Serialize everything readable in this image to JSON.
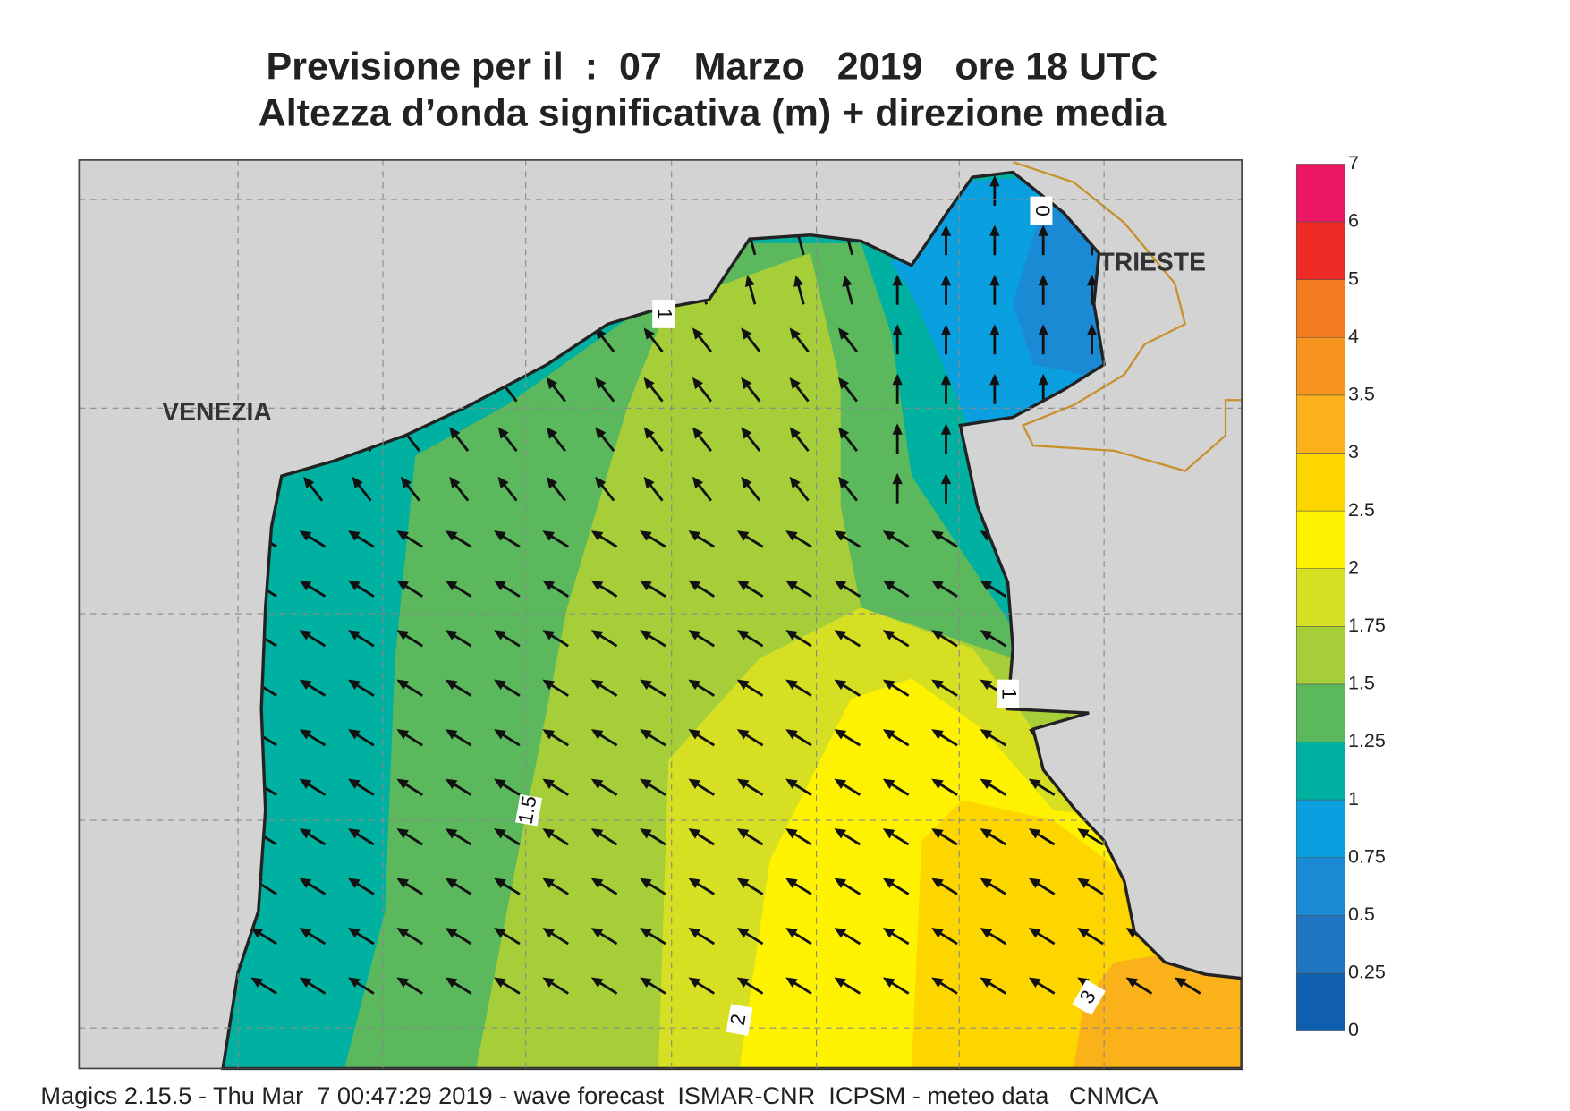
{
  "header": {
    "title": "Previsione per il  :  07   Marzo   2019   ore 18 UTC",
    "subtitle": "Altezza d’onda significativa (m) + direzione media"
  },
  "map": {
    "cities": [
      "VENEZIA",
      "TRIESTE"
    ],
    "contour_labels": [
      "0",
      "1",
      "1.5",
      "2",
      "3",
      "1"
    ]
  },
  "colorbar": {
    "levels": [
      0,
      0.25,
      0.5,
      0.75,
      1,
      1.25,
      1.5,
      1.75,
      2,
      2.5,
      3,
      3.5,
      4,
      5,
      6,
      7
    ],
    "colors": [
      "#0f5fae",
      "#1f75c0",
      "#1a8ad4",
      "#0aa0e0",
      "#00b0a0",
      "#5bb85d",
      "#a6ce39",
      "#d7df23",
      "#fff200",
      "#fdd600",
      "#fbb21a",
      "#f7941d",
      "#f47b20",
      "#ee2a24",
      "#ec1763"
    ]
  },
  "footer": "Magics 2.15.5 - Thu Mar  7 00:47:29 2019 - wave forecast  ISMAR-CNR  ICPSM - meteo data   CNMCA"
}
